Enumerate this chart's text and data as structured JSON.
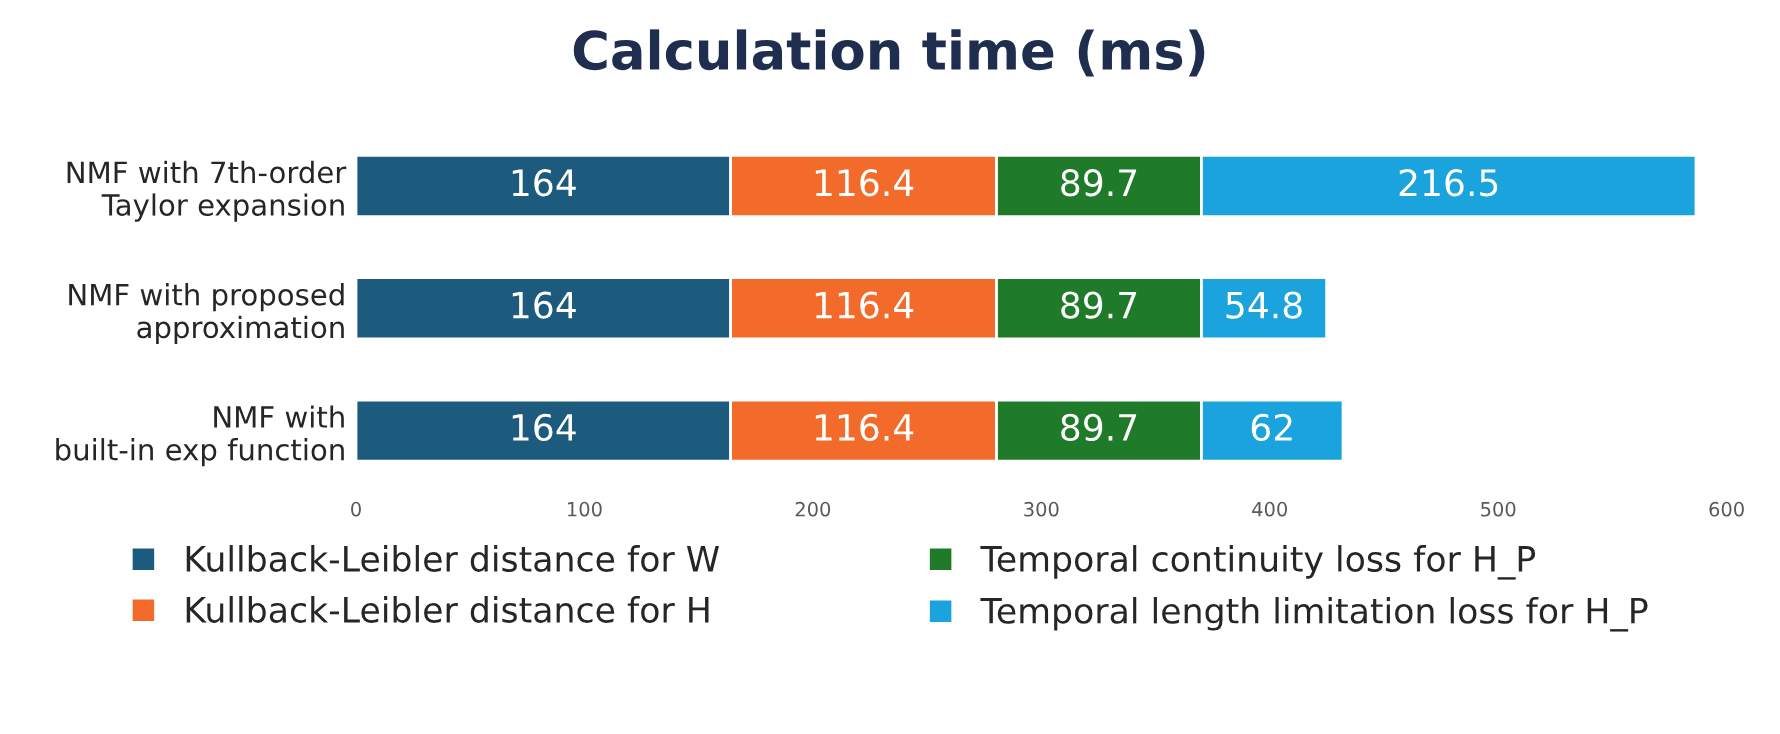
{
  "chart_data": {
    "type": "bar",
    "orientation": "horizontal",
    "stacked": true,
    "title": "Calculation time (ms)",
    "categories": [
      "NMF with 7th-order\nTaylor expansion",
      "NMF with proposed\napproximation",
      "NMF with\nbuilt-in exp function"
    ],
    "series": [
      {
        "name": "Kullback-Leibler distance for W",
        "color": "#1d5b7e",
        "values": [
          164,
          164,
          164
        ]
      },
      {
        "name": "Kullback-Leibler distance for H",
        "color": "#f26b2a",
        "values": [
          116.4,
          116.4,
          116.4
        ]
      },
      {
        "name": "Temporal continuity loss for H_P",
        "color": "#1f7a2a",
        "values": [
          89.7,
          89.7,
          89.7
        ]
      },
      {
        "name": "Temporal length limitation loss for H_P",
        "color": "#1aa3dc",
        "values": [
          216.5,
          54.8,
          62
        ]
      }
    ],
    "xlim": [
      0,
      600
    ],
    "xticks": [
      0,
      100,
      200,
      300,
      400,
      500,
      600
    ],
    "data_labels": true,
    "grid": false,
    "legend": "bottom"
  }
}
